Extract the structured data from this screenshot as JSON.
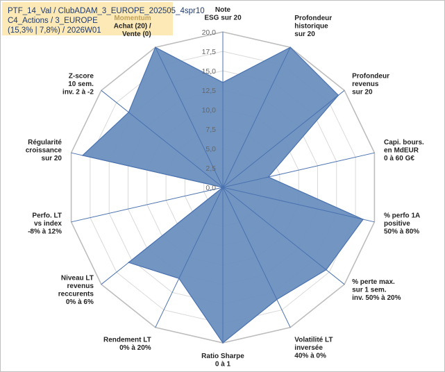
{
  "title_box": {
    "line1": "PTF_14_Val / ClubADAM_3_EUROPE_202505_4spr10",
    "line2": "C4_Actions / 3_EUROPE",
    "line3": "(15,3% | 7,8%) / 2026W01"
  },
  "chart_data": {
    "type": "radar",
    "r_range": [
      0,
      20
    ],
    "r_ticks": [
      "0,0",
      "2,5",
      "5,0",
      "7,5",
      "10,0",
      "12,5",
      "15,0",
      "17,5",
      "20,0"
    ],
    "grid": true,
    "fill_color": "#6a8fbf",
    "line_color": "#4a72b0",
    "axes": [
      {
        "label": [
          "Note",
          "ESG sur 20"
        ],
        "value": 13.5
      },
      {
        "label": [
          "Profondeur",
          "historique",
          "sur 20"
        ],
        "value": 20
      },
      {
        "label": [
          "Profondeur",
          "revenus",
          "sur 20"
        ],
        "value": 19
      },
      {
        "label": [
          "Capi. bours.",
          "en MdEUR",
          "0 à 60 G€"
        ],
        "value": 6
      },
      {
        "label": [
          "% perfo 1A",
          "positive",
          "50% à 80%"
        ],
        "value": 18.5
      },
      {
        "label": [
          "% perte max.",
          "sur 1 sem.",
          "inv. 50% à 20%"
        ],
        "value": 17
      },
      {
        "label": [
          "Volatilité LT",
          "inversée",
          "40% à 0%"
        ],
        "value": 16
      },
      {
        "label": [
          "Ratio Sharpe",
          "0 à 1"
        ],
        "value": 20
      },
      {
        "label": [
          "Rendement LT",
          "0% à 20%"
        ],
        "value": 13
      },
      {
        "label": [
          "Niveau LT",
          "revenus",
          "reccurents",
          "0% à 6%"
        ],
        "value": 15.5
      },
      {
        "label": [
          "Perfo. LT",
          "vs index",
          "-8% à 12%"
        ],
        "value": 0
      },
      {
        "label": [
          "Régularité",
          "croissance",
          "sur 20"
        ],
        "value": 18.5
      },
      {
        "label": [
          "Z-score",
          "10 sem.",
          "inv. 2 à -2"
        ],
        "value": 15.5
      },
      {
        "label": [
          "Momentum",
          "Achat (20) /",
          "Vente (0)"
        ],
        "value": 20,
        "highlight_first_line": true
      }
    ]
  }
}
